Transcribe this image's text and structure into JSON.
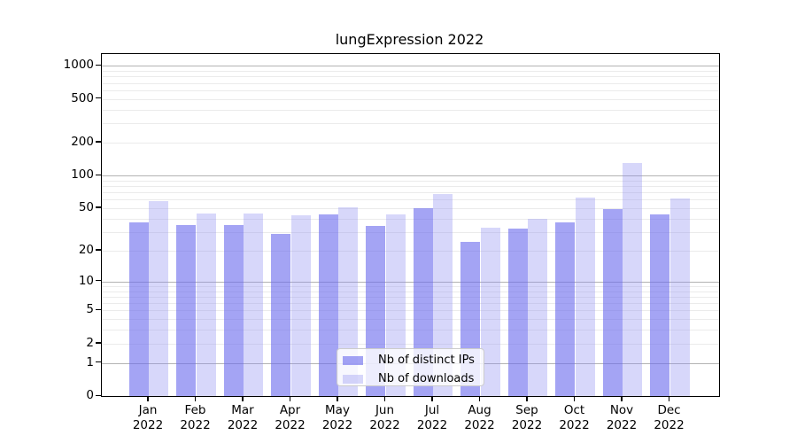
{
  "title": "lungExpression 2022",
  "colors": {
    "ips_bar": "rgba(108,108,238,0.62)",
    "downloads_bar": "rgba(140,140,240,0.35)",
    "major_grid": "#b3b3b3",
    "minor_grid": "#ebebeb",
    "spine": "#000000",
    "legend_border": "#cccccc",
    "legend_bg": "rgba(255,255,255,0.8)",
    "text": "#000000"
  },
  "y_axis": {
    "tick_values": [
      1000,
      500,
      200,
      100,
      50,
      20,
      10,
      5,
      2,
      1,
      0
    ],
    "tick_labels": [
      "1000",
      "500",
      "200",
      "100",
      "50",
      "20",
      "10",
      "5",
      "2",
      "1",
      "0"
    ],
    "major_grid_values": [
      1,
      10,
      100,
      1000
    ],
    "minor_grid_values": [
      2,
      3,
      4,
      5,
      6,
      7,
      8,
      9,
      20,
      30,
      40,
      50,
      60,
      70,
      80,
      90,
      200,
      300,
      400,
      500,
      600,
      700,
      800,
      900
    ]
  },
  "x_axis": {
    "months": [
      "Jan",
      "Feb",
      "Mar",
      "Apr",
      "May",
      "Jun",
      "Jul",
      "Aug",
      "Sep",
      "Oct",
      "Nov",
      "Dec"
    ],
    "year": "2022"
  },
  "chart_data": {
    "type": "bar",
    "title": "lungExpression 2022",
    "categories": [
      "Jan 2022",
      "Feb 2022",
      "Mar 2022",
      "Apr 2022",
      "May 2022",
      "Jun 2022",
      "Jul 2022",
      "Aug 2022",
      "Sep 2022",
      "Oct 2022",
      "Nov 2022",
      "Dec 2022"
    ],
    "series": [
      {
        "name": "Nb of distinct IPs",
        "values": [
          37,
          35,
          35,
          29,
          44,
          34,
          50,
          24,
          32,
          37,
          49,
          44
        ]
      },
      {
        "name": "Nb of downloads",
        "values": [
          58,
          45,
          45,
          43,
          51,
          44,
          68,
          33,
          40,
          63,
          131,
          62
        ]
      }
    ],
    "yscale": "log1p",
    "ylim": [
      0,
      1260
    ],
    "yticks": [
      0,
      1,
      2,
      5,
      10,
      20,
      50,
      100,
      200,
      500,
      1000
    ],
    "grid": "horizontal",
    "legend_position": "lower center"
  }
}
